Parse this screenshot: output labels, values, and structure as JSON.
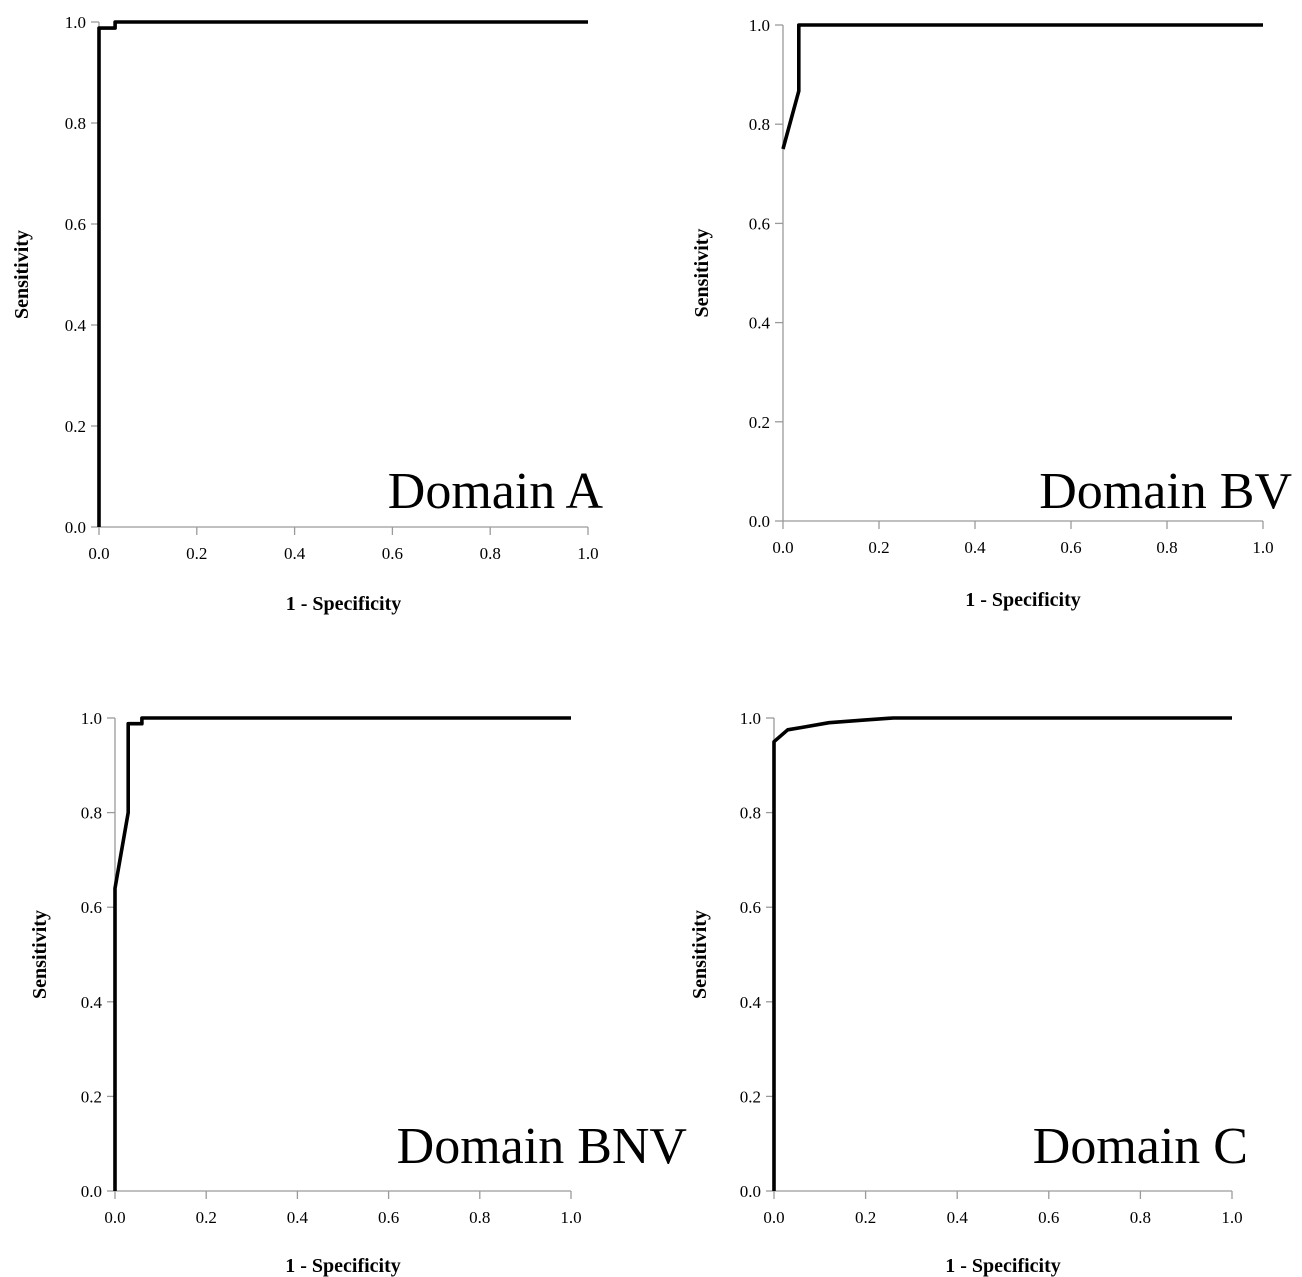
{
  "chart_data": [
    {
      "type": "line",
      "annotation": "Domain A",
      "xlabel": "1 - Specificity",
      "ylabel": "Sensitivity",
      "xlim": [
        0,
        1
      ],
      "ylim": [
        0,
        1
      ],
      "xticks": [
        "0.0",
        "0.2",
        "0.4",
        "0.6",
        "0.8",
        "1.0"
      ],
      "yticks": [
        "0.0",
        "0.2",
        "0.4",
        "0.6",
        "0.8",
        "1.0"
      ],
      "grid": false,
      "series": [
        {
          "x": [
            0,
            0,
            0.033,
            0.033,
            1
          ],
          "y": [
            0,
            0.988,
            0.988,
            1.0,
            1.0
          ]
        }
      ]
    },
    {
      "type": "line",
      "annotation": "Domain BV",
      "xlabel": "1 - Specificity",
      "ylabel": "Sensitivity",
      "xlim": [
        0,
        1
      ],
      "ylim": [
        0,
        1
      ],
      "xticks": [
        "0.0",
        "0.2",
        "0.4",
        "0.6",
        "0.8",
        "1.0"
      ],
      "yticks": [
        "0.0",
        "0.2",
        "0.4",
        "0.6",
        "0.8",
        "1.0"
      ],
      "grid": false,
      "series": [
        {
          "x": [
            0,
            0.033,
            0.033,
            1
          ],
          "y": [
            0.75,
            0.867,
            1.0,
            1.0
          ]
        }
      ]
    },
    {
      "type": "line",
      "annotation": "Domain BNV",
      "xlabel": "1 - Specificity",
      "ylabel": "Sensitivity",
      "xlim": [
        0,
        1
      ],
      "ylim": [
        0,
        1
      ],
      "xticks": [
        "0.0",
        "0.2",
        "0.4",
        "0.6",
        "0.8",
        "1.0"
      ],
      "yticks": [
        "0.0",
        "0.2",
        "0.4",
        "0.6",
        "0.8",
        "1.0"
      ],
      "grid": false,
      "series": [
        {
          "x": [
            0,
            0,
            0.029,
            0.029,
            0.059,
            0.059,
            1
          ],
          "y": [
            0,
            0.64,
            0.8,
            0.988,
            0.988,
            1.0,
            1.0
          ]
        }
      ]
    },
    {
      "type": "line",
      "annotation": "Domain C",
      "xlabel": "1 - Specificity",
      "ylabel": "Sensitivity",
      "xlim": [
        0,
        1
      ],
      "ylim": [
        0,
        1
      ],
      "xticks": [
        "0.0",
        "0.2",
        "0.4",
        "0.6",
        "0.8",
        "1.0"
      ],
      "yticks": [
        "0.0",
        "0.2",
        "0.4",
        "0.6",
        "0.8",
        "1.0"
      ],
      "grid": false,
      "series": [
        {
          "x": [
            0,
            0,
            0.03,
            0.06,
            0.12,
            0.2,
            0.26,
            1
          ],
          "y": [
            0,
            0.95,
            0.975,
            0.98,
            0.99,
            0.996,
            1.0,
            1.0
          ]
        }
      ]
    }
  ]
}
